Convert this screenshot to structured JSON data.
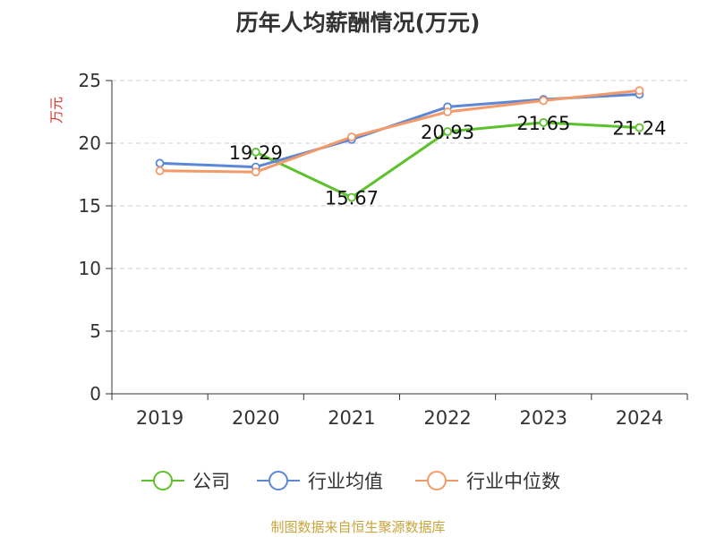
{
  "chart_data": {
    "type": "line",
    "title": "历年人均薪酬情况(万元)",
    "ylabel": "万元",
    "xlabel": "",
    "categories": [
      "2019",
      "2020",
      "2021",
      "2022",
      "2023",
      "2024"
    ],
    "ylim": [
      0,
      25
    ],
    "yticks": [
      0,
      5,
      10,
      15,
      20,
      25
    ],
    "grid": true,
    "legend_position": "bottom",
    "series": [
      {
        "name": "公司",
        "color": "#5cc12b",
        "values": [
          null,
          19.29,
          15.67,
          20.93,
          21.65,
          21.24
        ],
        "labels": [
          "",
          "19.29",
          "15.67",
          "20.93",
          "21.65",
          "21.24"
        ]
      },
      {
        "name": "行业均值",
        "color": "#5b87d6",
        "values": [
          18.4,
          18.1,
          20.3,
          22.9,
          23.5,
          23.9
        ]
      },
      {
        "name": "行业中位数",
        "color": "#f39a6a",
        "values": [
          17.8,
          17.7,
          20.5,
          22.5,
          23.4,
          24.2
        ]
      }
    ]
  },
  "source": "制图数据来自恒生聚源数据库"
}
